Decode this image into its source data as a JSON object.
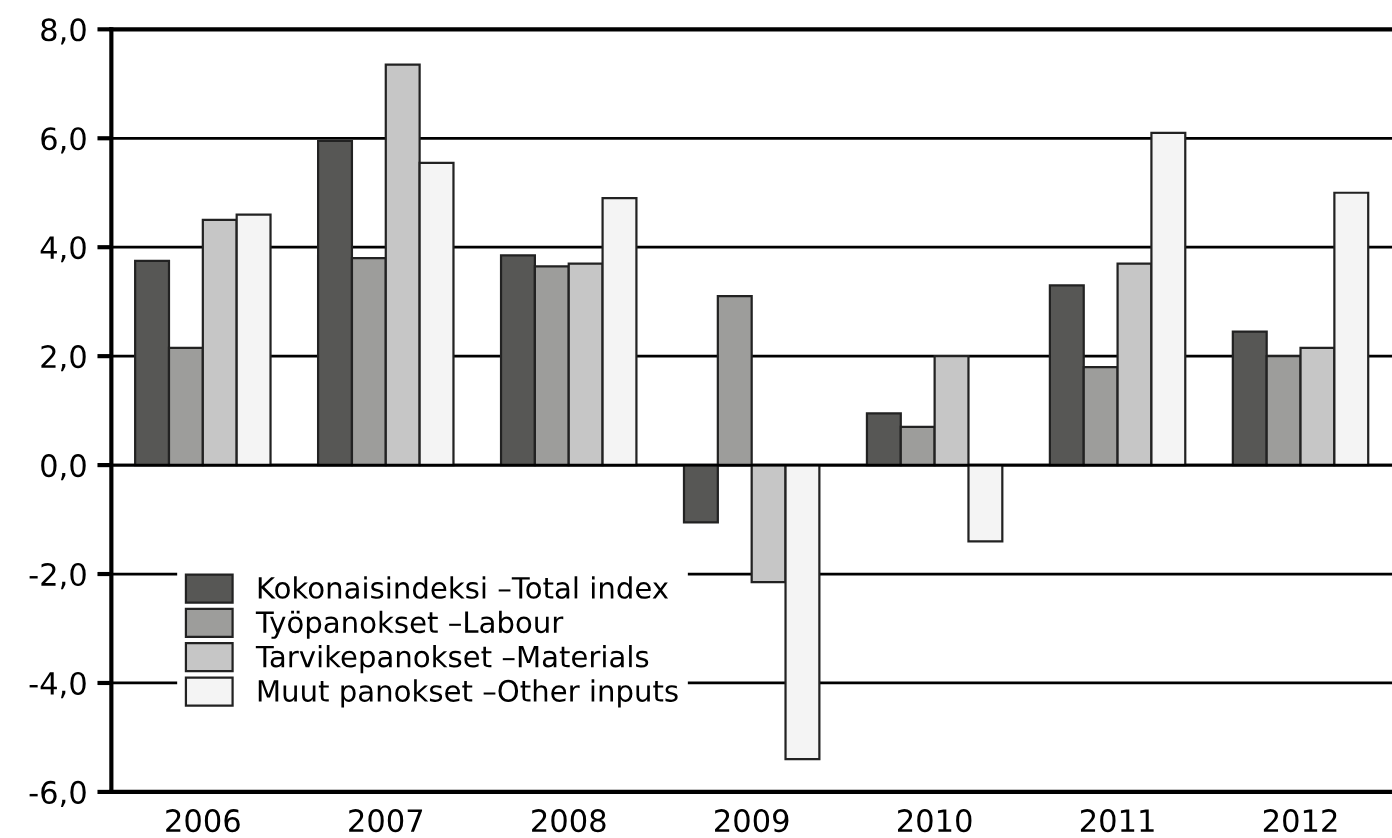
{
  "chart_data": {
    "type": "bar",
    "categories": [
      "2006",
      "2007",
      "2008",
      "2009",
      "2010",
      "2011",
      "2012"
    ],
    "series": [
      {
        "name": "Kokonaisindeksi –Total index",
        "color": "#575755",
        "values": [
          3.75,
          5.95,
          3.85,
          -1.05,
          0.95,
          3.3,
          2.45
        ]
      },
      {
        "name": "Työpanokset –Labour",
        "color": "#9d9d9b",
        "values": [
          2.15,
          3.8,
          3.65,
          3.1,
          0.7,
          1.8,
          2.0
        ]
      },
      {
        "name": "Tarvikepanokset –Materials",
        "color": "#c6c6c6",
        "values": [
          4.5,
          7.35,
          3.7,
          -2.15,
          2.0,
          3.7,
          2.15
        ]
      },
      {
        "name": "Muut panokset –Other inputs",
        "color": "#f4f4f4",
        "values": [
          4.6,
          5.55,
          4.9,
          -5.4,
          -1.4,
          6.1,
          5.0
        ]
      }
    ],
    "ylim": [
      -6,
      8
    ],
    "yticks": [
      {
        "value": -6,
        "label": "-6,0"
      },
      {
        "value": -4,
        "label": "-4,0"
      },
      {
        "value": -2,
        "label": "-2,0"
      },
      {
        "value": 0,
        "label": "0,0"
      },
      {
        "value": 2,
        "label": "2,0"
      },
      {
        "value": 4,
        "label": "4,0"
      },
      {
        "value": 6,
        "label": "6,0"
      },
      {
        "value": 8,
        "label": "8,0"
      }
    ],
    "grid": "y",
    "legend": "bottom left"
  }
}
